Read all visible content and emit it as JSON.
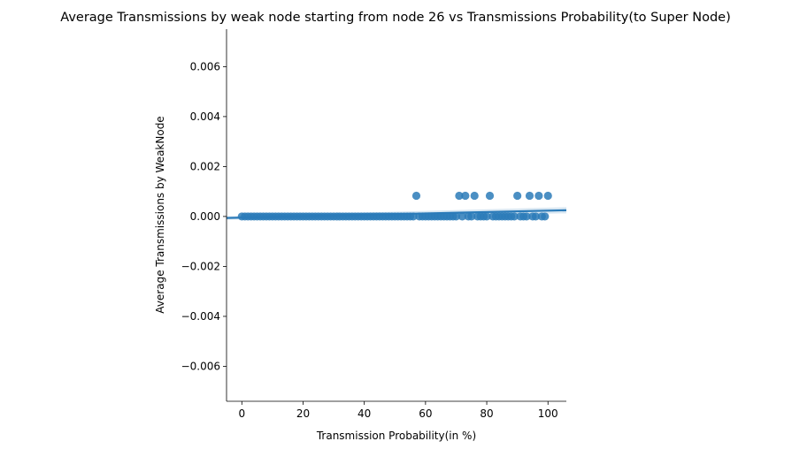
{
  "chart_data": {
    "type": "scatter",
    "title": "Average Transmissions by weak node starting from node 26 vs Transmissions Probability(to Super Node)",
    "xlabel": "Transmission Probability(in %)",
    "ylabel": "Average Transmissions by WeakNode",
    "xlim": [
      -5,
      106
    ],
    "ylim": [
      -0.0074,
      0.0075
    ],
    "x_ticks": [
      0,
      20,
      40,
      60,
      80,
      100
    ],
    "x_tick_labels": [
      "0",
      "20",
      "40",
      "60",
      "80",
      "100"
    ],
    "y_ticks": [
      -0.006,
      -0.004,
      -0.002,
      0.0,
      0.002,
      0.004,
      0.006
    ],
    "y_tick_labels": [
      "−0.006",
      "−0.004",
      "−0.002",
      "0.000",
      "0.002",
      "0.004",
      "0.006"
    ],
    "grid": false,
    "color": "#2b7bb9",
    "series": [
      {
        "x": [
          0,
          1,
          2,
          3,
          4,
          5,
          6,
          7,
          8,
          9,
          10,
          11,
          12,
          13,
          14,
          15,
          16,
          17,
          18,
          19,
          20,
          21,
          22,
          23,
          24,
          25,
          26,
          27,
          28,
          29,
          30,
          31,
          32,
          33,
          34,
          35,
          36,
          37,
          38,
          39,
          40,
          41,
          42,
          43,
          44,
          45,
          46,
          47,
          48,
          49,
          50,
          51,
          52,
          53,
          54,
          55,
          56,
          58,
          59,
          60,
          61,
          62,
          63,
          64,
          65,
          66,
          67,
          68,
          69,
          70,
          72,
          74,
          75,
          77,
          78,
          79,
          80,
          82,
          83,
          84,
          85,
          86,
          87,
          88,
          89,
          91,
          92,
          93,
          95,
          96,
          98,
          99,
          57,
          71,
          73,
          76,
          81,
          90,
          94,
          97,
          100
        ],
        "y": [
          0,
          0,
          0,
          0,
          0,
          0,
          0,
          0,
          0,
          0,
          0,
          0,
          0,
          0,
          0,
          0,
          0,
          0,
          0,
          0,
          0,
          0,
          0,
          0,
          0,
          0,
          0,
          0,
          0,
          0,
          0,
          0,
          0,
          0,
          0,
          0,
          0,
          0,
          0,
          0,
          0,
          0,
          0,
          0,
          0,
          0,
          0,
          0,
          0,
          0,
          0,
          0,
          0,
          0,
          0,
          0,
          0,
          0,
          0,
          0,
          0,
          0,
          0,
          0,
          0,
          0,
          0,
          0,
          0,
          0,
          0,
          0,
          0,
          0,
          0,
          0,
          0,
          0,
          0,
          0,
          0,
          0,
          0,
          0,
          0,
          0,
          0,
          0,
          0,
          0,
          0,
          0,
          0.00083,
          0.00083,
          0.00083,
          0.00083,
          0.00083,
          0.00083,
          0.00083,
          0.00083,
          0.00083
        ]
      }
    ],
    "regression": {
      "x_range": [
        -5,
        106
      ],
      "y_range": [
        -6e-05,
        0.00025
      ]
    }
  }
}
